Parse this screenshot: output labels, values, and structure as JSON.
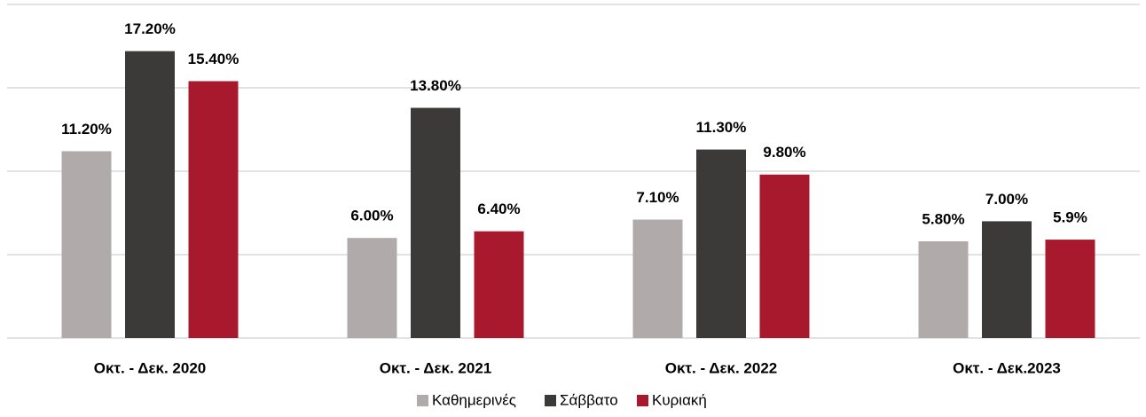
{
  "chart_data": {
    "type": "bar",
    "categories": [
      "Οκτ. - Δεκ. 2020",
      "Οκτ. - Δεκ. 2021",
      "Οκτ. - Δεκ. 2022",
      "Οκτ. - Δεκ.2023"
    ],
    "series": [
      {
        "name": "Καθημερινές",
        "color": "#b0abaa",
        "values": [
          11.2,
          6.0,
          7.1,
          5.8
        ],
        "value_labels": [
          "11.20%",
          "6.00%",
          "7.10%",
          "5.80%"
        ]
      },
      {
        "name": "Σάββατο",
        "color": "#3b3a38",
        "values": [
          17.2,
          13.8,
          11.3,
          7.0
        ],
        "value_labels": [
          "17.20%",
          "13.80%",
          "11.30%",
          "7.00%"
        ]
      },
      {
        "name": "Κυριακή",
        "color": "#a8192e",
        "values": [
          15.4,
          6.4,
          9.8,
          5.9
        ],
        "value_labels": [
          "15.40%",
          "6.40%",
          "9.80%",
          "5.9%"
        ]
      }
    ],
    "ylim": [
      0,
      20
    ],
    "yticks": [
      0,
      5,
      10,
      15,
      20
    ],
    "grid": true,
    "legend": "bottom"
  }
}
